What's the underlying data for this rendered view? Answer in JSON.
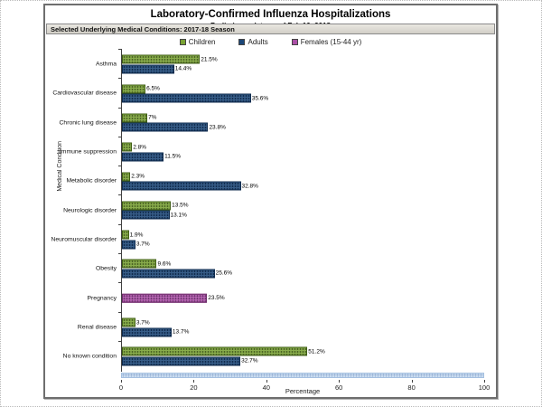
{
  "chart": {
    "title": "Laboratory-Confirmed Influenza Hospitalizations",
    "subtitle": "Preliminary data as of Feb 10, 2018",
    "header_bar": "Selected Underlying Medical Conditions: 2017-18 Season",
    "xlabel": "Percentage",
    "ylabel": "Medical Condition"
  },
  "chart_data": {
    "type": "bar",
    "orientation": "horizontal",
    "title": "Laboratory-Confirmed Influenza Hospitalizations",
    "subtitle": "Preliminary data as of Feb 10, 2018",
    "xlabel": "Percentage",
    "ylabel": "Medical Condition",
    "xlim": [
      0,
      100
    ],
    "xticks": [
      0,
      20,
      40,
      60,
      80,
      100
    ],
    "legend_position": "top",
    "grid": false,
    "categories": [
      "Asthma",
      "Cardiovascular disease",
      "Chronic lung disease",
      "Immune suppression",
      "Metabolic disorder",
      "Neurologic disorder",
      "Neuromuscular disorder",
      "Obesity",
      "Pregnancy",
      "Renal disease",
      "No known condition"
    ],
    "series": [
      {
        "name": "Children",
        "color": "#79a233",
        "border": "#3f5e14",
        "values": [
          21.5,
          6.5,
          7,
          2.8,
          2.3,
          13.5,
          1.9,
          9.6,
          null,
          3.7,
          51.2
        ],
        "labels": [
          "21.5%",
          "6.5%",
          "7%",
          "2.8%",
          "2.3%",
          "13.5%",
          "1.9%",
          "9.6%",
          null,
          "3.7%",
          "51.2%"
        ]
      },
      {
        "name": "Adults",
        "color": "#1b4778",
        "border": "#0e2a4d",
        "values": [
          14.4,
          35.6,
          23.8,
          11.5,
          32.8,
          13.1,
          3.7,
          25.6,
          null,
          13.7,
          32.7
        ],
        "labels": [
          "14.4%",
          "35.6%",
          "23.8%",
          "11.5%",
          "32.8%",
          "13.1%",
          "3.7%",
          "25.6%",
          null,
          "13.7%",
          "32.7%"
        ]
      },
      {
        "name": "Females (15-44 yr)",
        "color": "#ab4fa6",
        "border": "#6e2e6b",
        "values": [
          null,
          null,
          null,
          null,
          null,
          null,
          null,
          null,
          23.5,
          null,
          null
        ],
        "labels": [
          null,
          null,
          null,
          null,
          null,
          null,
          null,
          null,
          "23.5%",
          null,
          null
        ]
      }
    ],
    "footer_band": {
      "span": [
        0,
        100
      ],
      "color": "#c9dcf0"
    }
  }
}
